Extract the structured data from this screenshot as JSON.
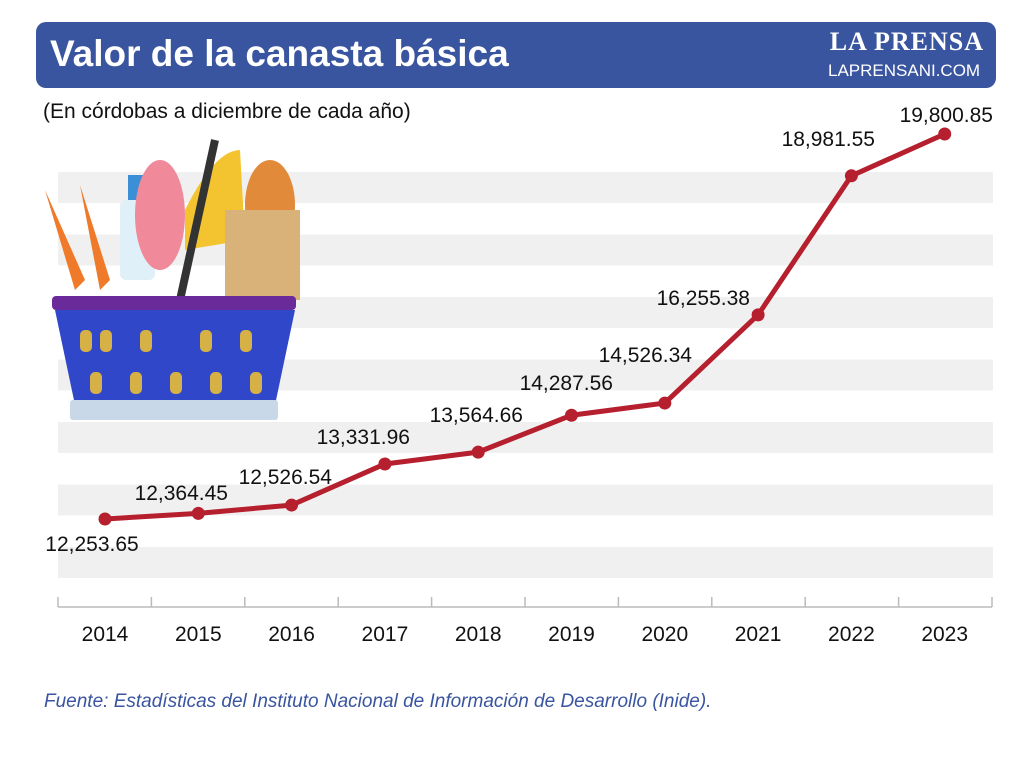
{
  "header": {
    "title": "Valor de la canasta básica",
    "brand": "LA PRENSA",
    "brand_url": "LAPRENSANI.COM"
  },
  "subtitle": "(En córdobas a diciembre de cada año)",
  "source": "Fuente: Estadísticas del Instituto Nacional de Información de Desarrollo (Inide).",
  "colors": {
    "header": "#3a55a0",
    "line": "#b51f2e",
    "band": "#f0f0f0"
  },
  "chart_data": {
    "type": "line",
    "title": "Valor de la canasta básica",
    "subtitle": "(En córdobas a diciembre de cada año)",
    "categories": [
      "2014",
      "2015",
      "2016",
      "2017",
      "2018",
      "2019",
      "2020",
      "2021",
      "2022",
      "2023"
    ],
    "values": [
      12253.65,
      12364.45,
      12526.54,
      13331.96,
      13564.66,
      14287.56,
      14526.34,
      16255.38,
      18981.55,
      19800.85
    ],
    "labels": [
      "12,253.65",
      "12,364.45",
      "12,526.54",
      "13,331.96",
      "13,564.66",
      "14,287.56",
      "14,526.34",
      "16,255.38",
      "18,981.55",
      "19,800.85"
    ],
    "ylim": [
      10000,
      20600
    ],
    "grid": "alternating horizontal bands",
    "xlabel": "",
    "ylabel": ""
  }
}
